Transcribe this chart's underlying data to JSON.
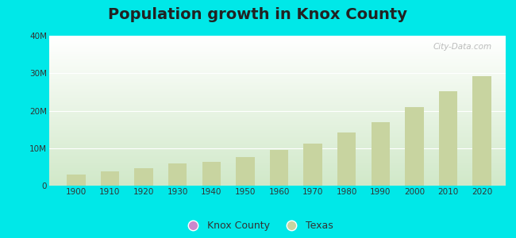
{
  "title": "Population growth in Knox County",
  "years": [
    1900,
    1910,
    1920,
    1930,
    1940,
    1950,
    1960,
    1970,
    1980,
    1990,
    2000,
    2010,
    2020
  ],
  "texas_values": [
    3048710,
    3896542,
    4663228,
    5824715,
    6414824,
    7711194,
    9579677,
    11196730,
    14229191,
    16986510,
    20851820,
    25145561,
    29145505
  ],
  "texas_bar_color": "#c8d4a0",
  "knox_bar_color": "#cc88cc",
  "background_color": "#00e8e8",
  "ylim": [
    0,
    40000000
  ],
  "yticks": [
    0,
    10000000,
    20000000,
    30000000,
    40000000
  ],
  "ytick_labels": [
    "0",
    "10M",
    "20M",
    "30M",
    "40M"
  ],
  "title_fontsize": 14,
  "watermark": "City-Data.com",
  "legend_knox": "Knox County",
  "legend_texas": "Texas",
  "bar_width": 5.5,
  "xlim_left": 1892,
  "xlim_right": 2027
}
